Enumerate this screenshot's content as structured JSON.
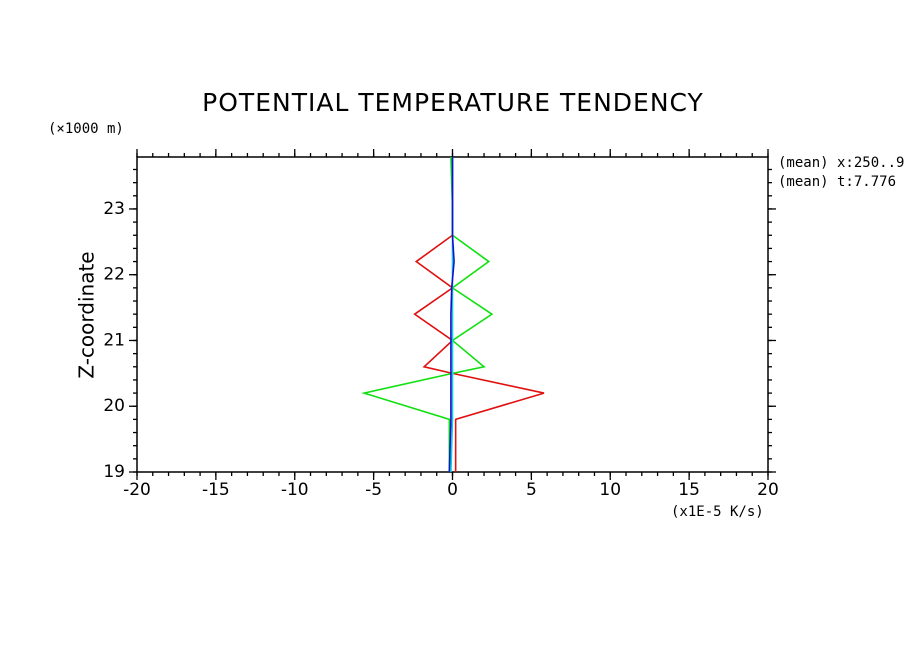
{
  "chart_data": {
    "type": "line",
    "title": "POTENTIAL TEMPERATURE TENDENCY",
    "y_label": "Z-coordinate",
    "y_unit": "(×1000 m)",
    "x_unit": "(x1E-5 K/s)",
    "annotations": [
      "(mean) x:250..9",
      "(mean) t:7.776"
    ],
    "y": [
      19,
      19.8,
      20.2,
      20.5,
      20.6,
      21.0,
      21.4,
      21.8,
      22.2,
      22.6,
      23.0,
      23.79
    ],
    "series": [
      {
        "color": "#e01010",
        "values": [
          0.2,
          0.2,
          5.8,
          0,
          -1.8,
          0,
          -2.4,
          0,
          -2.3,
          0,
          0,
          0
        ]
      },
      {
        "color": "#10e010",
        "values": [
          -0.2,
          -0.2,
          -5.6,
          0,
          2.0,
          0,
          2.5,
          0,
          2.3,
          0,
          0,
          -0.1
        ]
      },
      {
        "color": "#10d0e0",
        "values": [
          -0.1,
          0,
          0,
          0,
          0,
          0,
          0,
          0,
          0,
          0,
          0,
          0
        ]
      },
      {
        "color": "#1010d0",
        "values": [
          -0.2,
          -0.1,
          -0.1,
          -0.1,
          -0.1,
          -0.1,
          -0.1,
          -0.05,
          0.1,
          0,
          0,
          0
        ]
      }
    ],
    "xlim": [
      -20,
      20
    ],
    "xticks": [
      -20,
      -15,
      -10,
      -5,
      0,
      5,
      10,
      15,
      20
    ],
    "ylim": [
      19,
      23.79
    ],
    "yticks": [
      19,
      20,
      21,
      22,
      23
    ]
  }
}
